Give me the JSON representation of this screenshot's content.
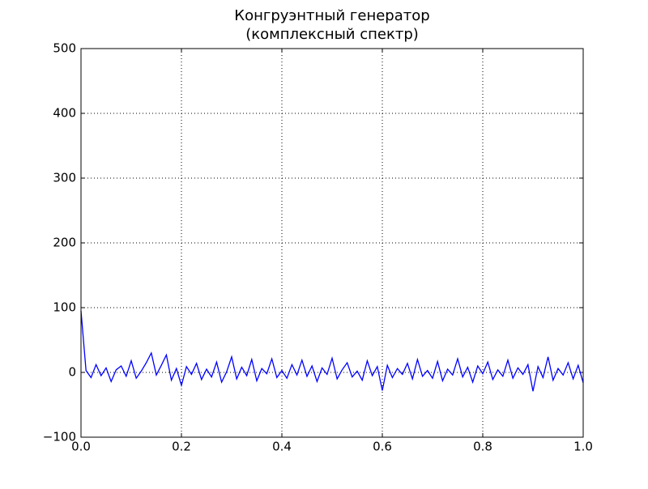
{
  "chart_data": {
    "type": "line",
    "title_lines": [
      "Конгруэнтный генератор",
      "(комплексный спектр)"
    ],
    "x": [
      0,
      0.01,
      0.02,
      0.03,
      0.04,
      0.05,
      0.06,
      0.07,
      0.08,
      0.09,
      0.1,
      0.11,
      0.12,
      0.13,
      0.14,
      0.15,
      0.16,
      0.17,
      0.18,
      0.19,
      0.2,
      0.21,
      0.22,
      0.23,
      0.24,
      0.25,
      0.26,
      0.27,
      0.28,
      0.29,
      0.3,
      0.31,
      0.32,
      0.33,
      0.34,
      0.35,
      0.36,
      0.37,
      0.38,
      0.39,
      0.4,
      0.41,
      0.42,
      0.43,
      0.44,
      0.45,
      0.46,
      0.47,
      0.48,
      0.49,
      0.5,
      0.51,
      0.52,
      0.53,
      0.54,
      0.55,
      0.56,
      0.57,
      0.58,
      0.59,
      0.6,
      0.61,
      0.62,
      0.63,
      0.64,
      0.65,
      0.66,
      0.67,
      0.68,
      0.69,
      0.7,
      0.71,
      0.72,
      0.73,
      0.74,
      0.75,
      0.76,
      0.77,
      0.78,
      0.79,
      0.8,
      0.81,
      0.82,
      0.83,
      0.84,
      0.85,
      0.86,
      0.87,
      0.88,
      0.89,
      0.9,
      0.91,
      0.92,
      0.93,
      0.94,
      0.95,
      0.96,
      0.97,
      0.98,
      0.99,
      1
    ],
    "values": [
      95,
      3,
      -8,
      12,
      -5,
      7,
      -14,
      4,
      10,
      -6,
      18,
      -9,
      2,
      15,
      30,
      -4,
      11,
      27,
      -12,
      6,
      -20,
      9,
      -3,
      14,
      -11,
      5,
      -7,
      16,
      -15,
      1,
      24,
      -10,
      8,
      -5,
      20,
      -13,
      6,
      -2,
      21,
      -8,
      3,
      -9,
      12,
      -4,
      19,
      -6,
      10,
      -14,
      7,
      -3,
      22,
      -10,
      4,
      15,
      -7,
      2,
      -12,
      18,
      -5,
      9,
      -28,
      11,
      -8,
      6,
      -3,
      14,
      -10,
      20,
      -6,
      3,
      -9,
      17,
      -13,
      5,
      -4,
      21,
      -7,
      8,
      -15,
      10,
      -2,
      16,
      -11,
      4,
      -6,
      19,
      -9,
      7,
      -3,
      12,
      -29,
      9,
      -8,
      24,
      -12,
      6,
      -4,
      15,
      -10,
      11,
      -16
    ],
    "color": "#0000ff",
    "xlim": [
      0,
      1
    ],
    "xticks": [
      {
        "value": 0,
        "label": "0.0"
      },
      0.2,
      0.4,
      0.6,
      0.8,
      {
        "value": 1,
        "label": "1.0"
      }
    ],
    "ylim": [
      -100,
      500
    ],
    "yticks": [
      {
        "value": -100,
        "label": "−100"
      },
      0,
      100,
      200,
      300,
      400,
      500
    ],
    "grid": true
  }
}
